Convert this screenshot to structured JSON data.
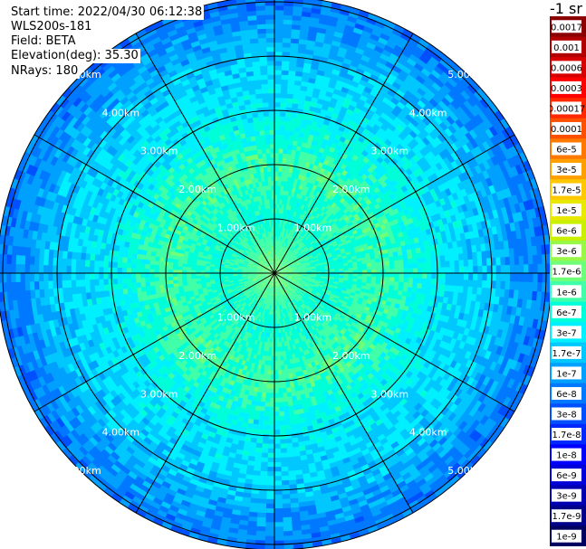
{
  "header": {
    "start_time": "Start time: 2022/04/30 06:12:38",
    "instrument": "WLS200s-181",
    "field": "Field: BETA",
    "elevation": "Elevation(deg): 35.30",
    "nrays": "NRays: 180"
  },
  "chart_data": {
    "type": "heatmap",
    "projection": "polar",
    "range_rings_km": [
      1,
      2,
      3,
      4,
      5
    ],
    "max_range_km": 5.1,
    "n_spokes": 12,
    "ring_labels": [
      "1.00km",
      "2.00km",
      "3.00km",
      "4.00km",
      "5.00km"
    ],
    "grid": true,
    "colorbar": {
      "unit_label": "-1 sr",
      "ticks": [
        "0.0017",
        "0.001",
        "0.0006",
        "0.0003",
        "0.00017",
        "0.0001",
        "6e-5",
        "3e-5",
        "1.7e-5",
        "1e-5",
        "6e-6",
        "3e-6",
        "1.7e-6",
        "1e-6",
        "6e-7",
        "3e-7",
        "1.7e-7",
        "1e-7",
        "6e-8",
        "3e-8",
        "1.7e-8",
        "1e-8",
        "6e-9",
        "3e-9",
        "1.7e-9",
        "1e-9"
      ],
      "colors": [
        "#8a0000",
        "#b00000",
        "#d60000",
        "#ff0000",
        "#ff2800",
        "#ff5000",
        "#ff7800",
        "#ffa000",
        "#ffc800",
        "#e8e800",
        "#c8f000",
        "#98f848",
        "#70ff78",
        "#40ffa8",
        "#00ffd8",
        "#00f0ff",
        "#00c8ff",
        "#00a0ff",
        "#0078ff",
        "#0050ff",
        "#0028ff",
        "#0000ff",
        "#0000d8",
        "#0000b0",
        "#000088",
        "#000060"
      ]
    },
    "field_profile": [
      {
        "range_km": 0.0,
        "value": "1.7e-6"
      },
      {
        "range_km": 0.5,
        "value": "1e-6"
      },
      {
        "range_km": 1.0,
        "value": "6e-7"
      },
      {
        "range_km": 2.0,
        "value": "1e-6"
      },
      {
        "range_km": 3.0,
        "value": "3e-7"
      },
      {
        "range_km": 4.0,
        "value": "1.7e-7"
      },
      {
        "range_km": 5.0,
        "value": "6e-8"
      }
    ]
  }
}
